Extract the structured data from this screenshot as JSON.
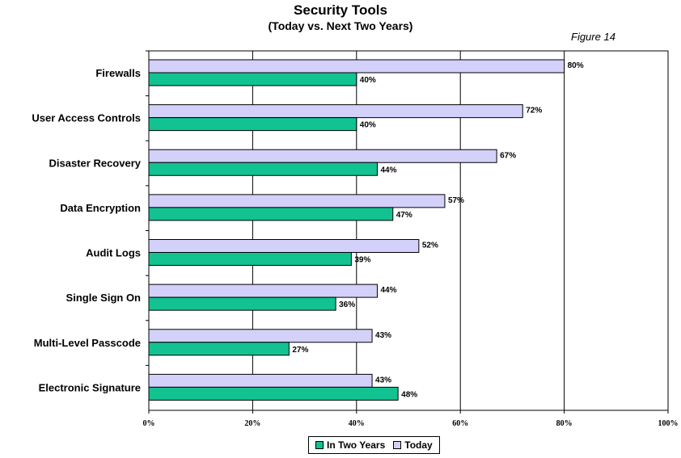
{
  "figure_label": "Figure 14",
  "colors": {
    "in_two_years": "#12c290",
    "today": "#d3d0fa",
    "border": "#000000"
  },
  "chart_data": {
    "type": "bar",
    "orientation": "horizontal",
    "title": "Security Tools",
    "subtitle": "(Today vs. Next Two Years)",
    "categories": [
      "Firewalls",
      "User Access Controls",
      "Disaster Recovery",
      "Data Encryption",
      "Audit Logs",
      "Single Sign On",
      "Multi-Level Passcode",
      "Electronic Signature"
    ],
    "series": [
      {
        "name": "Today",
        "values": [
          80,
          72,
          67,
          57,
          52,
          44,
          43,
          43
        ],
        "labels": [
          "80%",
          "72%",
          "67%",
          "57%",
          "52%",
          "44%",
          "43%",
          "43%"
        ]
      },
      {
        "name": "In Two Years",
        "values": [
          40,
          40,
          44,
          47,
          39,
          36,
          27,
          48
        ],
        "labels": [
          "40%",
          "40%",
          "44%",
          "47%",
          "39%",
          "36%",
          "27%",
          "48%"
        ]
      }
    ],
    "xlim": [
      0,
      100
    ],
    "xticks": [
      "0%",
      "20%",
      "40%",
      "60%",
      "80%",
      "100%"
    ],
    "grid": "vertical",
    "legend": "bottom"
  }
}
